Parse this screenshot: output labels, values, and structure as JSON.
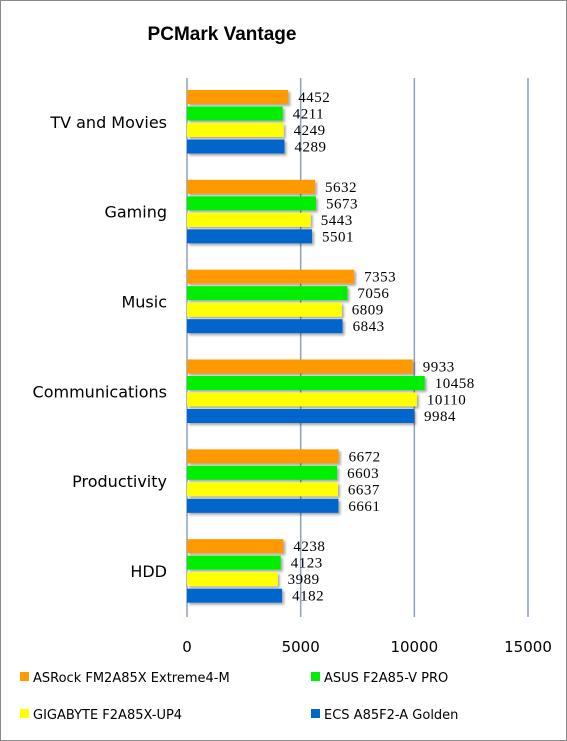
{
  "chart_data": {
    "type": "bar",
    "orientation": "horizontal",
    "title": "PCMark Vantage",
    "categories": [
      "TV and Movies",
      "Gaming",
      "Music",
      "Communications",
      "Productivity",
      "HDD"
    ],
    "series": [
      {
        "name": "ASRock FM2A85X Extreme4-M",
        "color": "#ff9900",
        "values": [
          4452,
          5632,
          7353,
          9933,
          6672,
          4238
        ]
      },
      {
        "name": "ASUS F2A85-V PRO",
        "color": "#00ee00",
        "values": [
          4211,
          5673,
          7056,
          10458,
          6603,
          4123
        ]
      },
      {
        "name": "GIGABYTE F2A85X-UP4",
        "color": "#ffff00",
        "values": [
          4249,
          5443,
          6809,
          10110,
          6637,
          3989
        ]
      },
      {
        "name": "ECS A85F2-A Golden",
        "color": "#0066cc",
        "values": [
          4289,
          5501,
          6843,
          9984,
          6661,
          4182
        ]
      }
    ],
    "xlim": [
      0,
      15000
    ],
    "xticks": [
      0,
      5000,
      10000,
      15000
    ],
    "grid": true,
    "legend_position": "bottom"
  }
}
